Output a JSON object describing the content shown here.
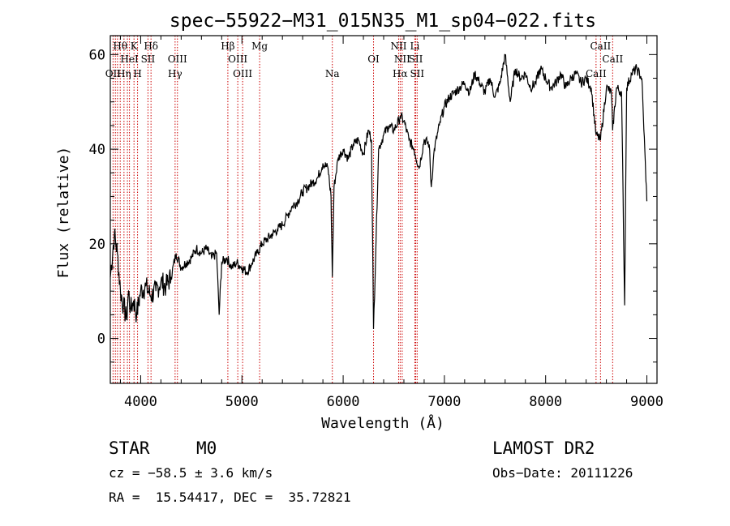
{
  "chart_data": {
    "type": "line",
    "title": "spec−55922−M31_015N35_M1_sp04−022.fits",
    "xlabel": "Wavelength (Å)",
    "ylabel": "Flux (relative)",
    "xlim": [
      3700,
      9100
    ],
    "ylim": [
      -9.5,
      64
    ],
    "x_ticks": [
      4000,
      5000,
      6000,
      7000,
      8000,
      9000
    ],
    "y_ticks": [
      0,
      20,
      40,
      60
    ],
    "grid": false,
    "line_color": "#000000",
    "marker_color": "#cc0000",
    "series": [
      {
        "x": [
          3700,
          3740,
          3770,
          3800,
          3830,
          3860,
          3880,
          3900,
          3930,
          3960,
          4000,
          4050,
          4100,
          4150,
          4200,
          4250,
          4300,
          4350,
          4400,
          4450,
          4500,
          4550,
          4600,
          4650,
          4700,
          4750,
          4775,
          4800,
          4850,
          4900,
          4950,
          5000,
          5050,
          5100,
          5150,
          5200,
          5250,
          5300,
          5350,
          5400,
          5450,
          5500,
          5550,
          5600,
          5650,
          5700,
          5750,
          5800,
          5850,
          5880,
          5893,
          5910,
          5950,
          6000,
          6050,
          6100,
          6150,
          6200,
          6250,
          6280,
          6300,
          6350,
          6400,
          6450,
          6500,
          6550,
          6563,
          6600,
          6650,
          6700,
          6750,
          6800,
          6850,
          6870,
          6900,
          6950,
          7000,
          7050,
          7100,
          7150,
          7200,
          7250,
          7300,
          7350,
          7400,
          7450,
          7500,
          7550,
          7600,
          7650,
          7700,
          7750,
          7800,
          7850,
          7900,
          7950,
          8000,
          8050,
          8100,
          8150,
          8200,
          8250,
          8300,
          8350,
          8400,
          8450,
          8498,
          8542,
          8600,
          8650,
          8662,
          8700,
          8750,
          8780,
          8800,
          8850,
          8900,
          8950,
          9000
        ],
        "y": [
          13,
          22,
          18,
          10,
          7,
          4,
          10,
          6,
          8,
          5,
          10,
          11,
          9,
          10,
          12,
          11,
          13,
          18,
          15,
          16,
          17,
          19,
          18,
          19,
          17,
          18,
          5,
          16,
          17,
          15,
          16,
          15,
          14,
          16,
          18,
          20,
          21,
          22,
          23,
          24,
          26,
          28,
          29,
          31,
          32,
          33,
          34,
          37,
          36,
          30,
          13,
          32,
          38,
          40,
          38,
          41,
          42,
          39,
          44,
          42,
          2,
          40,
          43,
          45,
          44,
          46,
          47,
          46,
          42,
          40,
          36,
          42,
          41,
          32,
          40,
          45,
          49,
          51,
          52,
          53,
          54,
          52,
          56,
          54,
          52,
          55,
          51,
          54,
          60,
          50,
          57,
          55,
          56,
          53,
          54,
          57,
          55,
          53,
          54,
          56,
          53,
          55,
          56,
          54,
          55,
          53,
          43,
          42,
          53,
          52,
          44,
          53,
          52,
          7,
          53,
          56,
          57,
          55,
          29
        ]
      }
    ],
    "line_markers": [
      {
        "wavelength": 3727,
        "label": "OII",
        "row": 3
      },
      {
        "wavelength": 3750,
        "label": "",
        "row": 0
      },
      {
        "wavelength": 3771,
        "label": "",
        "row": 0
      },
      {
        "wavelength": 3798,
        "label": "Hθ",
        "row": 1
      },
      {
        "wavelength": 3835,
        "label": "Hη",
        "row": 3
      },
      {
        "wavelength": 3869,
        "label": "",
        "row": 0
      },
      {
        "wavelength": 3889,
        "label": "HeI",
        "row": 2
      },
      {
        "wavelength": 3934,
        "label": "K",
        "row": 1
      },
      {
        "wavelength": 3969,
        "label": "H",
        "row": 3
      },
      {
        "wavelength": 4072,
        "label": "SII",
        "row": 2
      },
      {
        "wavelength": 4102,
        "label": "Hδ",
        "row": 1
      },
      {
        "wavelength": 4340,
        "label": "Hγ",
        "row": 3
      },
      {
        "wavelength": 4363,
        "label": "OIII",
        "row": 2
      },
      {
        "wavelength": 4861,
        "label": "Hβ",
        "row": 1
      },
      {
        "wavelength": 4959,
        "label": "OIII",
        "row": 2
      },
      {
        "wavelength": 5007,
        "label": "OIII",
        "row": 3
      },
      {
        "wavelength": 5175,
        "label": "Mg",
        "row": 1
      },
      {
        "wavelength": 5893,
        "label": "Na",
        "row": 3
      },
      {
        "wavelength": 6300,
        "label": "OI",
        "row": 2
      },
      {
        "wavelength": 6548,
        "label": "NII",
        "row": 1
      },
      {
        "wavelength": 6563,
        "label": "Hα",
        "row": 3
      },
      {
        "wavelength": 6583,
        "label": "NII",
        "row": 2
      },
      {
        "wavelength": 6708,
        "label": "Li",
        "row": 1
      },
      {
        "wavelength": 6717,
        "label": "SII",
        "row": 2
      },
      {
        "wavelength": 6731,
        "label": "SII",
        "row": 3
      },
      {
        "wavelength": 8498,
        "label": "CaII",
        "row": 3
      },
      {
        "wavelength": 8542,
        "label": "CaII",
        "row": 1
      },
      {
        "wavelength": 8662,
        "label": "CaII",
        "row": 2
      }
    ]
  },
  "info": {
    "object_class": "STAR",
    "subclass": "M0",
    "survey": "LAMOST DR2",
    "cz": "cz = −58.5 ± 3.6 km/s",
    "obs_date": "Obs−Date: 20111226",
    "coords": "RA =  15.54417, DEC =  35.72821"
  }
}
